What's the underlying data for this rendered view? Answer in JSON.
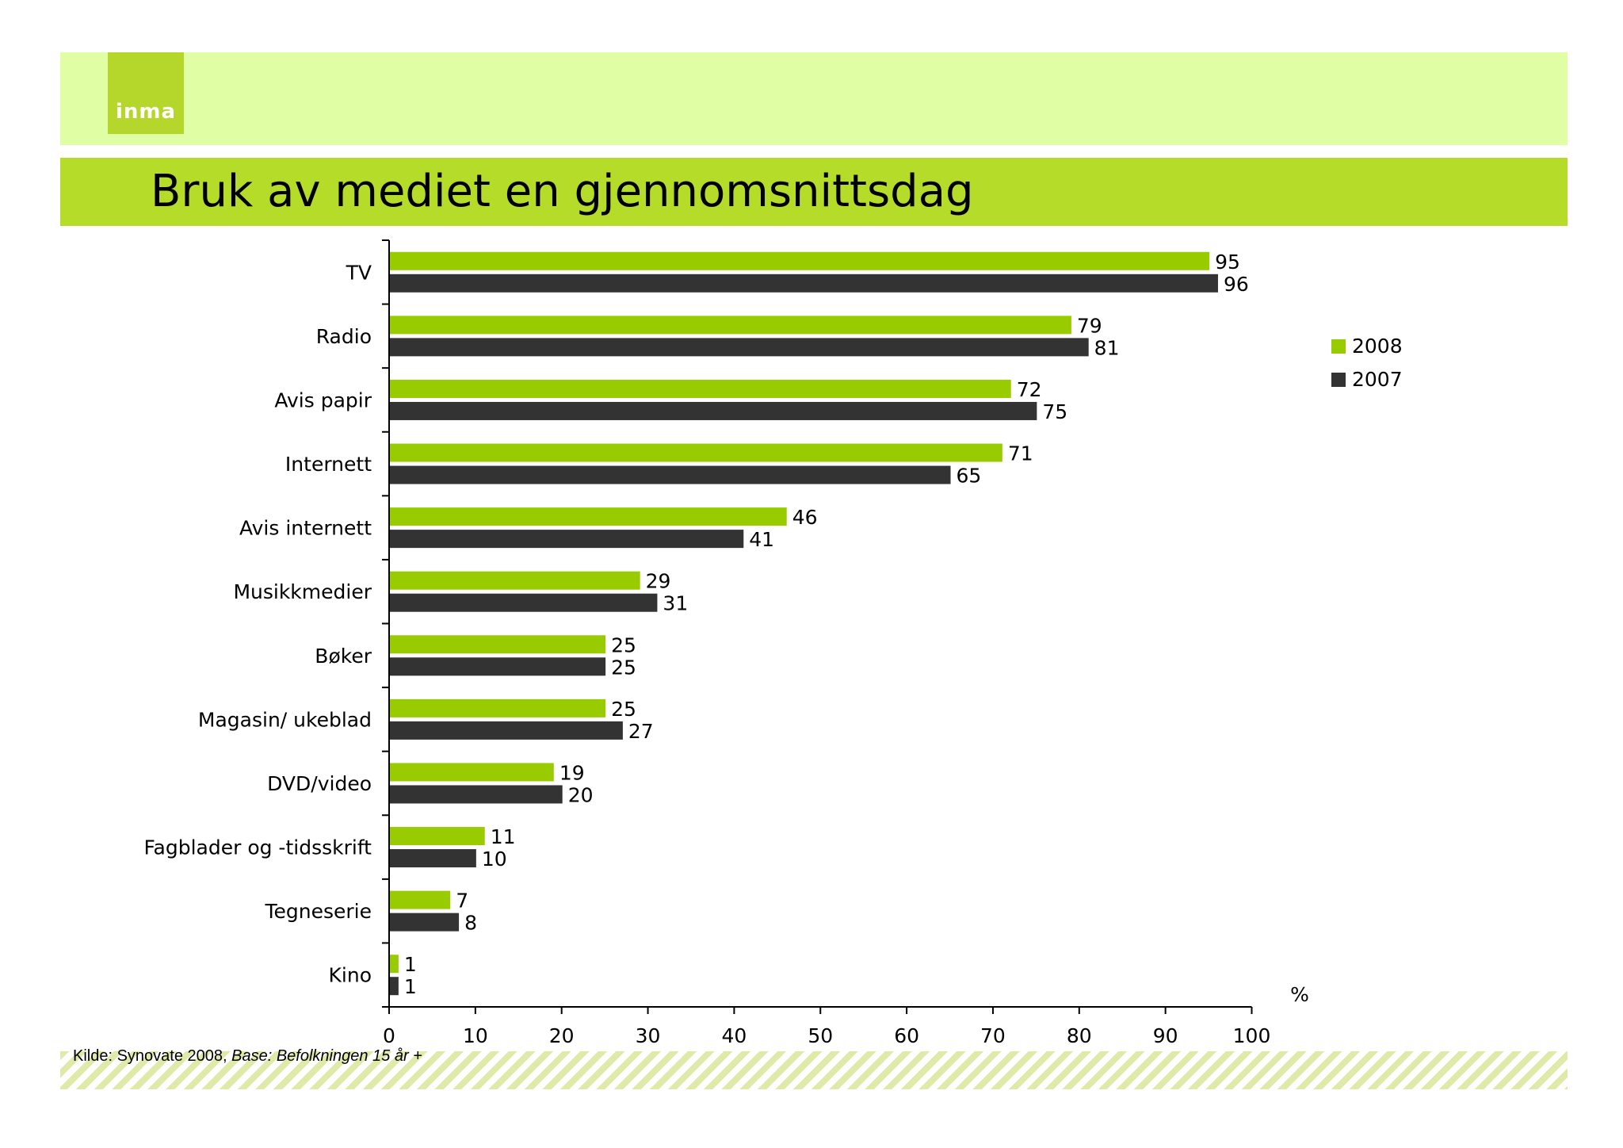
{
  "header": {
    "logo_text": "inma",
    "title": "Bruk av mediet en gjennomsnittsdag"
  },
  "footer": {
    "source_label": "Kilde: Synovate 2008, ",
    "base_label": "Base: Befolkningen 15 år +"
  },
  "colors": {
    "series_2008": "#99cc00",
    "series_2007": "#333333",
    "title_band": "#b6dc2a",
    "top_band": "#e0ffa5"
  },
  "chart_data": {
    "type": "bar",
    "orientation": "horizontal",
    "categories": [
      "TV",
      "Radio",
      "Avis papir",
      "Internett",
      "Avis internett",
      "Musikkmedier",
      "Bøker",
      "Magasin/ ukeblad",
      "DVD/video",
      "Fagblader og -tidsskrift",
      "Tegneserie",
      "Kino"
    ],
    "series": [
      {
        "name": "2008",
        "color": "#99cc00",
        "values": [
          95,
          79,
          72,
          71,
          46,
          29,
          25,
          25,
          19,
          11,
          7,
          1
        ]
      },
      {
        "name": "2007",
        "color": "#333333",
        "values": [
          96,
          81,
          75,
          65,
          41,
          31,
          25,
          27,
          20,
          10,
          8,
          1
        ]
      }
    ],
    "x_ticks": [
      "0",
      "10",
      "20",
      "30",
      "40",
      "50",
      "60",
      "70",
      "80",
      "90",
      "100"
    ],
    "xlim": [
      0,
      100
    ],
    "unit_label": "%",
    "legend_position": "right",
    "data_labels": true,
    "grid": false
  }
}
